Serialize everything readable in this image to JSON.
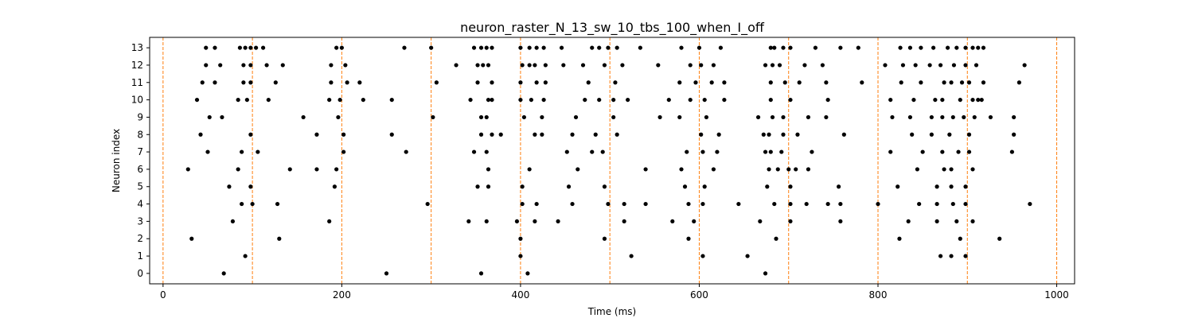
{
  "chart_data": {
    "type": "scatter",
    "title": "neuron_raster_N_13_sw_10_tbs_100_when_I_off",
    "xlabel": "Time (ms)",
    "ylabel": "Neuron index",
    "xlim": [
      -15,
      1020
    ],
    "ylim": [
      -0.6,
      13.6
    ],
    "xticks": [
      0,
      200,
      400,
      600,
      800,
      1000
    ],
    "yticks": [
      0,
      1,
      2,
      3,
      4,
      5,
      6,
      7,
      8,
      9,
      10,
      11,
      12,
      13
    ],
    "grid": false,
    "marker_color": "#000000",
    "vline_color": "#ff7f0e",
    "vlines": [
      0,
      100,
      200,
      300,
      400,
      500,
      600,
      700,
      800,
      900,
      1000
    ],
    "series": [
      {
        "neuron": 13,
        "times": [
          48,
          58,
          86,
          92,
          98,
          104,
          112,
          194,
          200,
          270,
          300,
          348,
          356,
          362,
          368,
          400,
          410,
          418,
          426,
          446,
          480,
          488,
          498,
          508,
          534,
          580,
          600,
          624,
          680,
          684,
          694,
          702,
          730,
          758,
          778,
          825,
          836,
          848,
          862,
          878,
          888,
          898,
          906,
          912,
          918
        ]
      },
      {
        "neuron": 12,
        "times": [
          48,
          64,
          90,
          98,
          116,
          134,
          188,
          204,
          328,
          352,
          358,
          364,
          402,
          410,
          416,
          428,
          448,
          470,
          494,
          514,
          554,
          590,
          602,
          616,
          674,
          682,
          690,
          718,
          738,
          808,
          828,
          842,
          858,
          870,
          885,
          898,
          910,
          964
        ]
      },
      {
        "neuron": 11,
        "times": [
          44,
          58,
          90,
          98,
          126,
          188,
          206,
          220,
          306,
          352,
          368,
          400,
          418,
          428,
          476,
          506,
          578,
          596,
          614,
          628,
          680,
          696,
          712,
          742,
          782,
          826,
          848,
          874,
          882,
          894,
          902,
          918,
          958
        ]
      },
      {
        "neuron": 10,
        "times": [
          38,
          84,
          94,
          118,
          186,
          198,
          224,
          256,
          344,
          364,
          368,
          400,
          412,
          426,
          472,
          488,
          504,
          520,
          566,
          590,
          606,
          628,
          680,
          702,
          744,
          814,
          840,
          864,
          872,
          892,
          906,
          912,
          916
        ]
      },
      {
        "neuron": 9,
        "times": [
          52,
          66,
          157,
          196,
          302,
          356,
          362,
          404,
          424,
          462,
          504,
          556,
          578,
          608,
          666,
          682,
          694,
          722,
          742,
          816,
          836,
          860,
          872,
          884,
          896,
          908,
          926,
          952
        ]
      },
      {
        "neuron": 8,
        "times": [
          42,
          98,
          172,
          202,
          256,
          356,
          368,
          378,
          416,
          424,
          458,
          484,
          508,
          602,
          622,
          672,
          678,
          694,
          710,
          762,
          838,
          860,
          880,
          902,
          952
        ]
      },
      {
        "neuron": 7,
        "times": [
          50,
          88,
          106,
          202,
          272,
          348,
          362,
          452,
          480,
          492,
          586,
          604,
          620,
          674,
          680,
          692,
          726,
          814,
          850,
          872,
          890,
          902,
          950
        ]
      },
      {
        "neuron": 6,
        "times": [
          28,
          84,
          142,
          172,
          194,
          364,
          410,
          464,
          540,
          580,
          616,
          678,
          688,
          700,
          708,
          722,
          844,
          874,
          882,
          906
        ]
      },
      {
        "neuron": 5,
        "times": [
          74,
          98,
          192,
          352,
          364,
          402,
          454,
          494,
          584,
          606,
          676,
          702,
          756,
          822,
          866,
          882,
          898
        ]
      },
      {
        "neuron": 4,
        "times": [
          88,
          100,
          128,
          296,
          402,
          418,
          458,
          498,
          516,
          540,
          588,
          604,
          644,
          684,
          702,
          720,
          744,
          758,
          800,
          846,
          866,
          884,
          898,
          970
        ]
      },
      {
        "neuron": 3,
        "times": [
          78,
          186,
          342,
          362,
          396,
          416,
          442,
          516,
          570,
          594,
          668,
          702,
          758,
          834,
          866,
          888,
          906
        ]
      },
      {
        "neuron": 2,
        "times": [
          32,
          130,
          400,
          494,
          588,
          686,
          824,
          892,
          936
        ]
      },
      {
        "neuron": 1,
        "times": [
          92,
          400,
          524,
          604,
          654,
          870,
          882,
          898
        ]
      },
      {
        "neuron": 0,
        "times": [
          68,
          250,
          356,
          408,
          674
        ]
      }
    ]
  }
}
